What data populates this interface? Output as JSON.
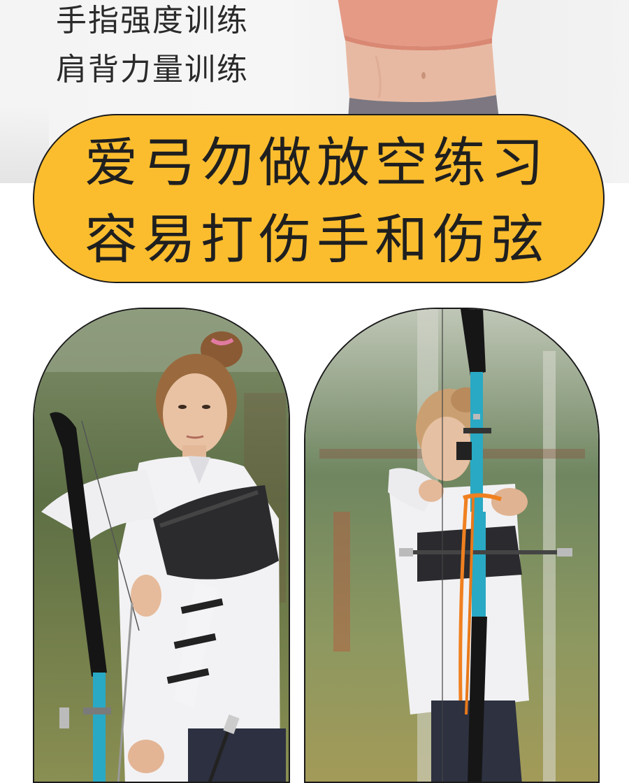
{
  "top": {
    "line1": "手指强度训练",
    "line2": "肩背力量训练"
  },
  "banner": {
    "line1": "爱弓勿做放空练习",
    "line2": "容易打伤手和伤弦"
  },
  "colors": {
    "banner_bg": "#fbbd2e",
    "text_dark": "#1f1f1f",
    "riser_blue": "#29a9c4",
    "string_orange": "#f08020"
  },
  "icons": {
    "torso": "torso-photo",
    "left_photo": "archer-holding-bow-photo",
    "right_photo": "archer-drawing-bow-photo"
  }
}
